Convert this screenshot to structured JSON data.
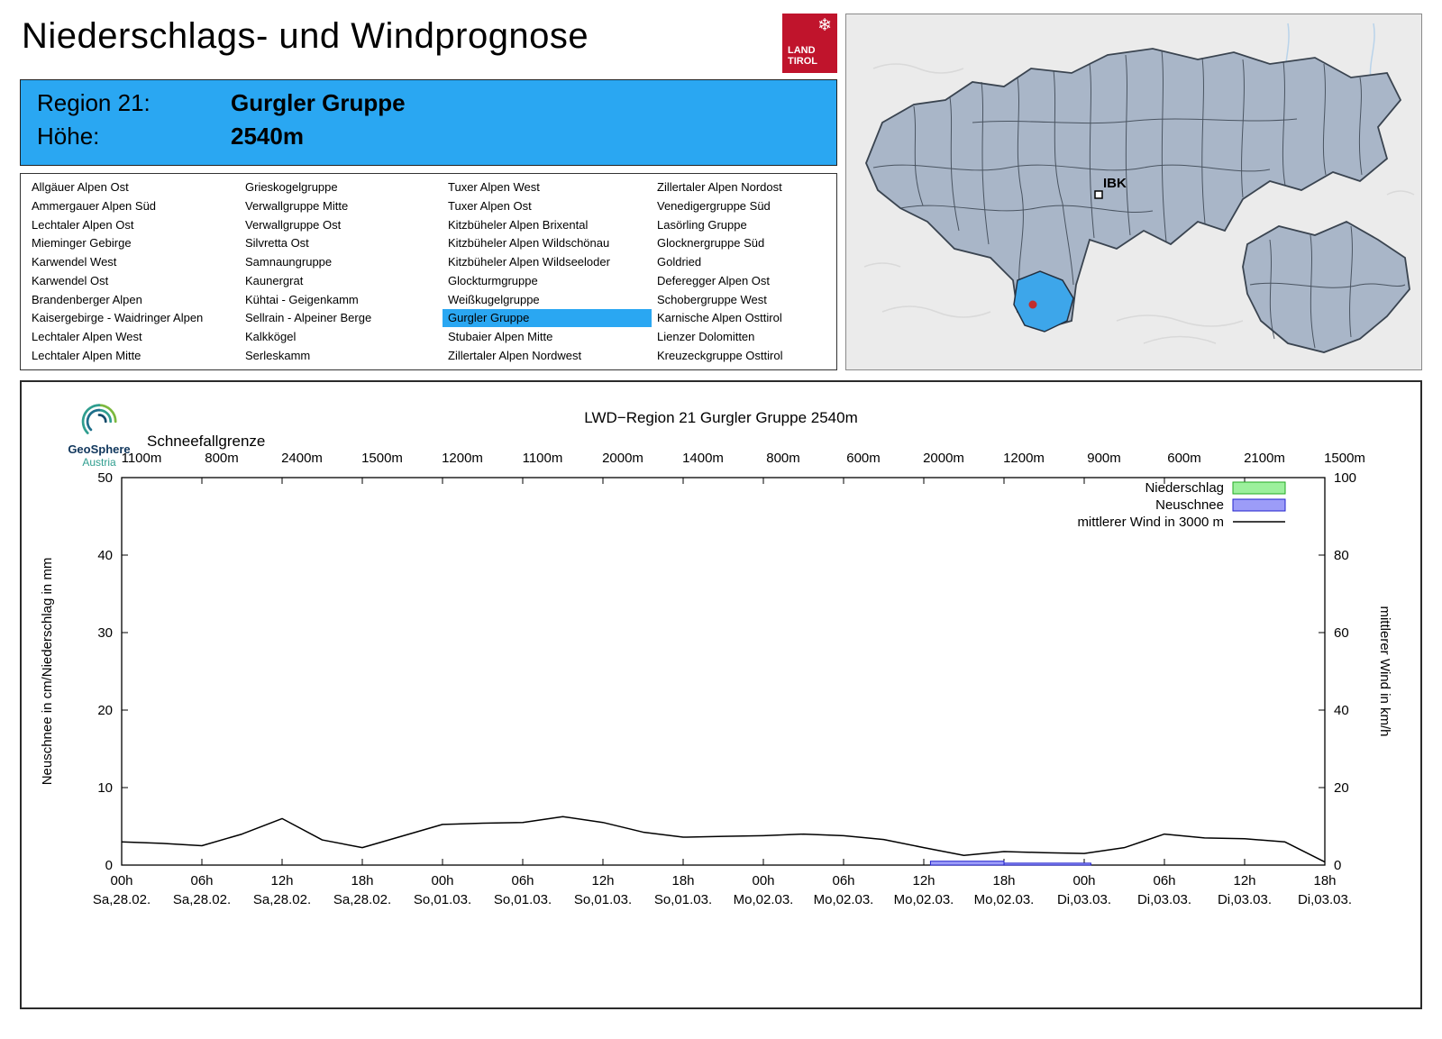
{
  "header": {
    "title": "Niederschlags- und Windprognose",
    "logo": {
      "line1": "LAND",
      "line2": "TIROL",
      "color": "#c0142c"
    }
  },
  "region_box": {
    "region_label": "Region 21:",
    "region_value": "Gurgler Gruppe",
    "altitude_label": "Höhe:",
    "altitude_value": "2540m",
    "highlight_color": "#2aa7f2"
  },
  "region_list": {
    "selected": "Gurgler Gruppe",
    "columns": [
      [
        "Allgäuer Alpen Ost",
        "Ammergauer Alpen Süd",
        "Lechtaler Alpen Ost",
        "Mieminger Gebirge",
        "Karwendel West",
        "Karwendel Ost",
        "Brandenberger Alpen",
        "Kaisergebirge - Waidringer Alpen",
        "Lechtaler Alpen West",
        "Lechtaler Alpen Mitte"
      ],
      [
        "Grieskogelgruppe",
        "Verwallgruppe Mitte",
        "Verwallgruppe Ost",
        "Silvretta Ost",
        "Samnaungruppe",
        "Kaunergrat",
        "Kühtai - Geigenkamm",
        "Sellrain - Alpeiner Berge",
        "Kalkkögel",
        "Serleskamm"
      ],
      [
        "Tuxer Alpen West",
        "Tuxer Alpen Ost",
        "Kitzbüheler Alpen Brixental",
        "Kitzbüheler Alpen Wildschönau",
        "Kitzbüheler Alpen Wildseeloder",
        "Glockturmgruppe",
        "Weißkugelgruppe",
        "Gurgler Gruppe",
        "Stubaier Alpen Mitte",
        "Zillertaler Alpen Nordwest"
      ],
      [
        "Zillertaler Alpen Nordost",
        "Venedigergruppe Süd",
        "Lasörling Gruppe",
        "Glocknergruppe Süd",
        "Goldried",
        "Deferegger Alpen Ost",
        "Schobergruppe West",
        "Karnische Alpen Osttirol",
        "Lienzer Dolomitten",
        "Kreuzeckgruppe Osttirol"
      ]
    ]
  },
  "map": {
    "city_label": "IBK",
    "selected_region_color": "#3da6ea",
    "region_fill": "#a9b6c8",
    "marker_color": "#c32e2e"
  },
  "geosphere_logo": {
    "name": "GeoSphere",
    "sub": "Austria"
  },
  "chart_data": {
    "type": "line+bar",
    "title": "LWD−Region 21 Gurgler Gruppe 2540m",
    "snowline_label": "Schneefallgrenze",
    "snowline_values": [
      "1100m",
      "800m",
      "2400m",
      "1500m",
      "1200m",
      "1100m",
      "2000m",
      "1400m",
      "800m",
      "600m",
      "2000m",
      "1200m",
      "900m",
      "600m",
      "2100m",
      "1500m"
    ],
    "ylabel_left": "Neuschnee in cm/Niederschlag in mm",
    "ylabel_right": "mittlerer Wind in km/h",
    "ylim_left": [
      0,
      50
    ],
    "ylim_right": [
      0,
      100
    ],
    "yticks_left": [
      0,
      10,
      20,
      30,
      40,
      50
    ],
    "yticks_right": [
      0,
      20,
      40,
      60,
      80,
      100
    ],
    "xlim_hours": [
      0,
      90
    ],
    "x_tick_step_hours": 6,
    "x_hours": [
      "00h",
      "06h",
      "12h",
      "18h",
      "00h",
      "06h",
      "12h",
      "18h",
      "00h",
      "06h",
      "12h",
      "18h",
      "00h",
      "06h",
      "12h",
      "18h"
    ],
    "x_dates": [
      "Sa,28.02.",
      "Sa,28.02.",
      "Sa,28.02.",
      "Sa,28.02.",
      "So,01.03.",
      "So,01.03.",
      "So,01.03.",
      "So,01.03.",
      "Mo,02.03.",
      "Mo,02.03.",
      "Mo,02.03.",
      "Mo,02.03.",
      "Di,03.03.",
      "Di,03.03.",
      "Di,03.03.",
      "Di,03.03."
    ],
    "legend": [
      {
        "label": "Niederschlag",
        "type": "bar",
        "fill": "#9cf09c",
        "stroke": "#22aa22"
      },
      {
        "label": "Neuschnee",
        "type": "bar",
        "fill": "#9c9cf8",
        "stroke": "#2222cc"
      },
      {
        "label": "mittlerer Wind in 3000 m",
        "type": "line",
        "stroke": "#000000"
      }
    ],
    "series": [
      {
        "name": "mittlerer Wind in 3000 m",
        "axis": "right",
        "unit": "km/h",
        "start_hour": 0,
        "step_hours": 3,
        "values": [
          6,
          5.6,
          5,
          8,
          12,
          6.5,
          4.5,
          7.5,
          10.5,
          10.8,
          11,
          12.5,
          11,
          8.5,
          7.2,
          7.4,
          7.6,
          8,
          7.6,
          6.6,
          4.5,
          2.5,
          3.5,
          3.2,
          3,
          4.5,
          8,
          7,
          6.8,
          6,
          0.8
        ]
      }
    ],
    "neuschnee_bars_cm": [
      {
        "from_hour": 60.5,
        "to_hour": 66,
        "value": 0.5
      },
      {
        "from_hour": 66,
        "to_hour": 72.5,
        "value": 0.25
      }
    ],
    "niederschlag_bars_mm": []
  }
}
